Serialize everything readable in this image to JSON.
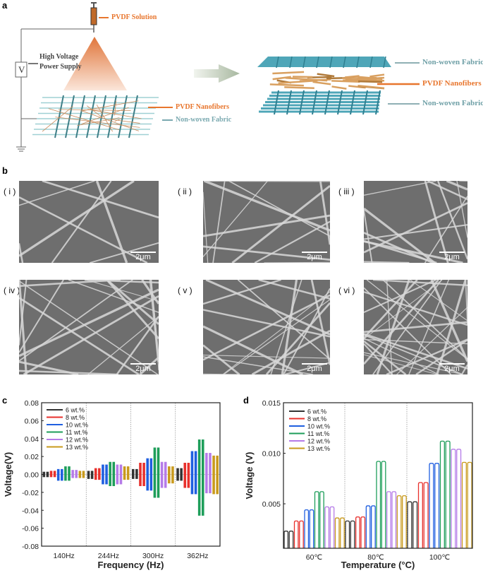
{
  "panel_a": {
    "letter": "a",
    "solution_label": "PVDF Solution",
    "supply_label_line1": "High Voltage",
    "supply_label_line2": "Power Supply",
    "voltage_symbol": "V",
    "nanofibers_label": "PVDF Nanofibers",
    "fabric_label": "Non-woven Fabric",
    "right_top_label": "Non-woven Fabric",
    "right_mid_label": "PVDF Nanofibers",
    "right_bottom_label": "Non-woven Fabric",
    "colors": {
      "orange": "#e8762e",
      "teal": "#5fa3ad",
      "fabric": "#4fa6b8",
      "fiber": "#d9a060"
    }
  },
  "panel_b": {
    "letter": "b",
    "images": [
      {
        "label": "( i )",
        "scale": "2μm"
      },
      {
        "label": "( ii )",
        "scale": "2μm"
      },
      {
        "label": "( iii )",
        "scale": "2μm"
      },
      {
        "label": "( iv )",
        "scale": "2μm"
      },
      {
        "label": "( v )",
        "scale": "2μm"
      },
      {
        "label": "( vi )",
        "scale": "2μm"
      }
    ]
  },
  "chart_data": [
    {
      "letter": "c",
      "type": "bar",
      "xlabel": "Frequency (Hz)",
      "ylabel": "Voltage(V)",
      "ylim": [
        -0.08,
        0.08
      ],
      "yticks": [
        "0.08",
        "0.06",
        "0.04",
        "0.02",
        "0.00",
        "-0.02",
        "-0.04",
        "-0.06",
        "-0.08"
      ],
      "categories": [
        "140Hz",
        "244Hz",
        "300Hz",
        "362Hz"
      ],
      "legend_placement": "top-left",
      "series": [
        {
          "name": "6 wt.%",
          "color": "#333333",
          "max": [
            0.003,
            0.004,
            0.006,
            0.007
          ],
          "min": [
            -0.003,
            -0.005,
            -0.005,
            -0.007
          ]
        },
        {
          "name": "8 wt.%",
          "color": "#e8302c",
          "max": [
            0.004,
            0.007,
            0.013,
            0.013
          ],
          "min": [
            -0.003,
            -0.006,
            -0.013,
            -0.015
          ]
        },
        {
          "name": "10 wt.%",
          "color": "#1f5fe0",
          "max": [
            0.006,
            0.011,
            0.018,
            0.026
          ],
          "min": [
            -0.007,
            -0.011,
            -0.018,
            -0.022
          ]
        },
        {
          "name": "11 wt.%",
          "color": "#1e9e5a",
          "max": [
            0.009,
            0.014,
            0.03,
            0.039
          ],
          "min": [
            -0.007,
            -0.013,
            -0.026,
            -0.046
          ]
        },
        {
          "name": "12 wt.%",
          "color": "#b57be8",
          "max": [
            0.005,
            0.011,
            0.014,
            0.024
          ],
          "min": [
            -0.004,
            -0.011,
            -0.015,
            -0.021
          ]
        },
        {
          "name": "13 wt.%",
          "color": "#c99a1c",
          "max": [
            0.004,
            0.009,
            0.009,
            0.021
          ],
          "min": [
            -0.004,
            -0.006,
            -0.01,
            -0.022
          ]
        }
      ]
    },
    {
      "letter": "d",
      "type": "line",
      "xlabel": "Temperature (°C)",
      "ylabel": "Voltage (V)",
      "ylim": [
        0.0006,
        0.015
      ],
      "yticks": [
        "0.015",
        "0.010",
        "0.005"
      ],
      "categories": [
        "60℃",
        "80℃",
        "100℃"
      ],
      "legend_placement": "top-left",
      "series": [
        {
          "name": "6 wt.%",
          "color": "#333333",
          "values": [
            0.0023,
            0.0033,
            0.0052
          ]
        },
        {
          "name": "8 wt.%",
          "color": "#e8302c",
          "values": [
            0.0033,
            0.0037,
            0.0071
          ]
        },
        {
          "name": "10 wt.%",
          "color": "#1f5fe0",
          "values": [
            0.0044,
            0.0048,
            0.009
          ]
        },
        {
          "name": "11 wt.%",
          "color": "#1e9e5a",
          "values": [
            0.0062,
            0.0092,
            0.0112
          ]
        },
        {
          "name": "12 wt.%",
          "color": "#b57be8",
          "values": [
            0.0047,
            0.0062,
            0.0104
          ]
        },
        {
          "name": "13 wt.%",
          "color": "#c99a1c",
          "values": [
            0.0036,
            0.0058,
            0.0091
          ]
        }
      ]
    }
  ]
}
